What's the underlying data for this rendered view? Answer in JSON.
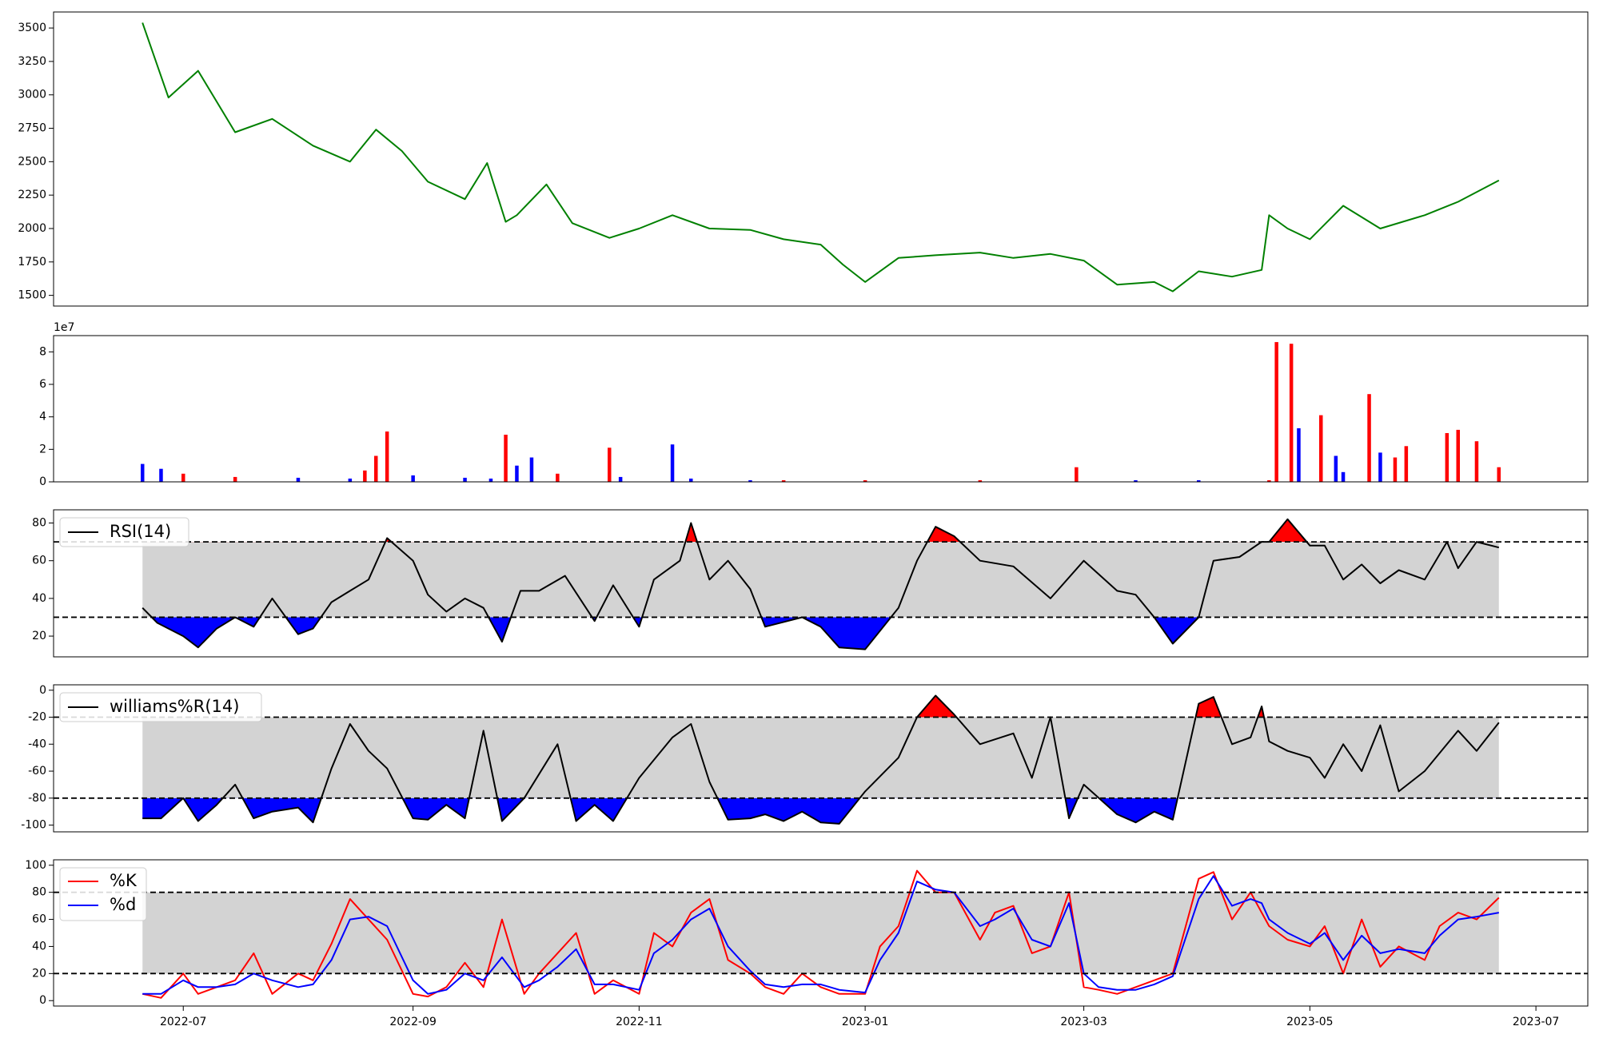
{
  "chart_data": [
    {
      "id": "price",
      "type": "line",
      "color": "#008000",
      "ylim": [
        1420,
        3620
      ],
      "yticks": [
        1500,
        1750,
        2000,
        2250,
        2500,
        2750,
        3000,
        3250,
        3500
      ],
      "x": [
        "2022-06-20",
        "2022-06-27",
        "2022-07-05",
        "2022-07-15",
        "2022-07-25",
        "2022-08-05",
        "2022-08-15",
        "2022-08-22",
        "2022-08-29",
        "2022-09-05",
        "2022-09-15",
        "2022-09-21",
        "2022-09-26",
        "2022-09-29",
        "2022-10-07",
        "2022-10-14",
        "2022-10-24",
        "2022-11-01",
        "2022-11-10",
        "2022-11-20",
        "2022-12-01",
        "2022-12-10",
        "2022-12-20",
        "2022-12-26",
        "2023-01-01",
        "2023-01-10",
        "2023-01-20",
        "2023-02-01",
        "2023-02-10",
        "2023-02-20",
        "2023-03-01",
        "2023-03-10",
        "2023-03-20",
        "2023-03-25",
        "2023-04-01",
        "2023-04-10",
        "2023-04-18",
        "2023-04-20",
        "2023-04-25",
        "2023-05-01",
        "2023-05-10",
        "2023-05-20",
        "2023-06-01",
        "2023-06-10",
        "2023-06-21"
      ],
      "values": [
        3540,
        2980,
        3180,
        2720,
        2820,
        2620,
        2500,
        2740,
        2580,
        2350,
        2220,
        2490,
        2050,
        2100,
        2330,
        2040,
        1930,
        2000,
        2100,
        2000,
        1990,
        1920,
        1880,
        1730,
        1600,
        1780,
        1800,
        1820,
        1780,
        1810,
        1760,
        1580,
        1600,
        1530,
        1680,
        1640,
        1690,
        2100,
        2000,
        1920,
        2170,
        2000,
        2100,
        2200,
        2360
      ]
    },
    {
      "id": "volume",
      "type": "bar",
      "exponent_label": "1e7",
      "ylim": [
        0,
        90000000
      ],
      "yticks": [
        0,
        20000000,
        40000000,
        60000000,
        80000000
      ],
      "ytick_labels": [
        "0",
        "2",
        "4",
        "6",
        "8"
      ],
      "colors": {
        "up": "#ff0000",
        "down": "#0000ff"
      },
      "x": [
        "2022-06-20",
        "2022-06-25",
        "2022-07-01",
        "2022-07-15",
        "2022-08-01",
        "2022-08-15",
        "2022-08-19",
        "2022-08-22",
        "2022-08-25",
        "2022-09-01",
        "2022-09-15",
        "2022-09-22",
        "2022-09-26",
        "2022-09-29",
        "2022-10-03",
        "2022-10-10",
        "2022-10-24",
        "2022-10-27",
        "2022-11-10",
        "2022-11-15",
        "2022-12-01",
        "2022-12-10",
        "2023-01-01",
        "2023-02-01",
        "2023-02-27",
        "2023-03-15",
        "2023-04-01",
        "2023-04-20",
        "2023-04-22",
        "2023-04-26",
        "2023-04-28",
        "2023-05-04",
        "2023-05-08",
        "2023-05-10",
        "2023-05-17",
        "2023-05-20",
        "2023-05-24",
        "2023-05-27",
        "2023-06-07",
        "2023-06-10",
        "2023-06-15",
        "2023-06-21"
      ],
      "values": [
        11000000,
        8000000,
        5000000,
        3000000,
        2500000,
        2000000,
        7000000,
        16000000,
        31000000,
        4000000,
        2500000,
        2000000,
        29000000,
        10000000,
        15000000,
        5000000,
        21000000,
        3000000,
        23000000,
        2000000,
        1000000,
        1000000,
        1000000,
        1000000,
        9000000,
        1000000,
        1000000,
        1000000,
        86000000,
        85000000,
        33000000,
        41000000,
        16000000,
        6000000,
        54000000,
        18000000,
        15000000,
        22000000,
        30000000,
        32000000,
        25000000,
        9000000
      ],
      "directions": [
        "down",
        "down",
        "up",
        "up",
        "down",
        "down",
        "up",
        "up",
        "up",
        "down",
        "down",
        "down",
        "up",
        "down",
        "down",
        "up",
        "up",
        "down",
        "down",
        "down",
        "down",
        "up",
        "up",
        "up",
        "up",
        "down",
        "down",
        "up",
        "up",
        "up",
        "down",
        "up",
        "down",
        "down",
        "up",
        "down",
        "up",
        "up",
        "up",
        "up",
        "up",
        "up"
      ]
    },
    {
      "id": "rsi",
      "type": "line",
      "legend": "RSI(14)",
      "color": "#000000",
      "ylim": [
        9,
        87
      ],
      "yticks": [
        20,
        40,
        60,
        80
      ],
      "thresholds": {
        "upper": 70,
        "lower": 30
      },
      "band_color": "#d3d3d3",
      "fill_above": "#ff0000",
      "fill_below": "#0000ff",
      "x": [
        "2022-06-20",
        "2022-06-24",
        "2022-07-01",
        "2022-07-05",
        "2022-07-10",
        "2022-07-15",
        "2022-07-20",
        "2022-07-25",
        "2022-08-01",
        "2022-08-05",
        "2022-08-10",
        "2022-08-15",
        "2022-08-20",
        "2022-08-25",
        "2022-09-01",
        "2022-09-05",
        "2022-09-10",
        "2022-09-15",
        "2022-09-20",
        "2022-09-25",
        "2022-09-30",
        "2022-10-05",
        "2022-10-12",
        "2022-10-20",
        "2022-10-25",
        "2022-11-01",
        "2022-11-05",
        "2022-11-12",
        "2022-11-15",
        "2022-11-20",
        "2022-11-25",
        "2022-12-01",
        "2022-12-05",
        "2022-12-15",
        "2022-12-20",
        "2022-12-25",
        "2023-01-01",
        "2023-01-10",
        "2023-01-15",
        "2023-01-20",
        "2023-01-25",
        "2023-02-01",
        "2023-02-10",
        "2023-02-20",
        "2023-03-01",
        "2023-03-10",
        "2023-03-15",
        "2023-03-20",
        "2023-03-25",
        "2023-04-01",
        "2023-04-05",
        "2023-04-12",
        "2023-04-18",
        "2023-04-20",
        "2023-04-25",
        "2023-05-01",
        "2023-05-05",
        "2023-05-10",
        "2023-05-15",
        "2023-05-20",
        "2023-05-25",
        "2023-06-01",
        "2023-06-07",
        "2023-06-10",
        "2023-06-15",
        "2023-06-21"
      ],
      "values": [
        35,
        27,
        20,
        14,
        24,
        30,
        25,
        40,
        21,
        24,
        38,
        44,
        50,
        72,
        60,
        42,
        33,
        40,
        35,
        17,
        44,
        44,
        52,
        28,
        47,
        25,
        50,
        60,
        80,
        50,
        60,
        45,
        25,
        30,
        25,
        14,
        13,
        35,
        60,
        78,
        73,
        60,
        57,
        40,
        60,
        44,
        42,
        30,
        16,
        30,
        60,
        62,
        70,
        70,
        82,
        68,
        68,
        50,
        58,
        48,
        55,
        50,
        70,
        56,
        70,
        67
      ]
    },
    {
      "id": "williams",
      "type": "line",
      "legend": "williams%R(14)",
      "color": "#000000",
      "ylim": [
        -105,
        4
      ],
      "yticks": [
        -100,
        -80,
        -60,
        -40,
        -20,
        0
      ],
      "thresholds": {
        "upper": -20,
        "lower": -80
      },
      "band_color": "#d3d3d3",
      "fill_above": "#ff0000",
      "fill_below": "#0000ff",
      "x": [
        "2022-06-20",
        "2022-06-25",
        "2022-07-01",
        "2022-07-05",
        "2022-07-10",
        "2022-07-15",
        "2022-07-20",
        "2022-07-25",
        "2022-08-01",
        "2022-08-05",
        "2022-08-10",
        "2022-08-15",
        "2022-08-20",
        "2022-08-25",
        "2022-09-01",
        "2022-09-05",
        "2022-09-10",
        "2022-09-15",
        "2022-09-20",
        "2022-09-25",
        "2022-10-01",
        "2022-10-10",
        "2022-10-15",
        "2022-10-20",
        "2022-10-25",
        "2022-11-01",
        "2022-11-10",
        "2022-11-15",
        "2022-11-20",
        "2022-11-25",
        "2022-12-01",
        "2022-12-05",
        "2022-12-10",
        "2022-12-15",
        "2022-12-20",
        "2022-12-25",
        "2023-01-01",
        "2023-01-10",
        "2023-01-15",
        "2023-01-20",
        "2023-01-25",
        "2023-02-01",
        "2023-02-10",
        "2023-02-15",
        "2023-02-20",
        "2023-02-25",
        "2023-03-01",
        "2023-03-10",
        "2023-03-15",
        "2023-03-20",
        "2023-03-25",
        "2023-04-01",
        "2023-04-05",
        "2023-04-10",
        "2023-04-15",
        "2023-04-18",
        "2023-04-20",
        "2023-04-25",
        "2023-05-01",
        "2023-05-05",
        "2023-05-10",
        "2023-05-15",
        "2023-05-20",
        "2023-05-25",
        "2023-06-01",
        "2023-06-10",
        "2023-06-15",
        "2023-06-21"
      ],
      "values": [
        -95,
        -95,
        -80,
        -97,
        -85,
        -70,
        -95,
        -90,
        -87,
        -98,
        -58,
        -25,
        -45,
        -58,
        -95,
        -96,
        -85,
        -95,
        -30,
        -97,
        -80,
        -40,
        -97,
        -85,
        -97,
        -65,
        -35,
        -25,
        -68,
        -96,
        -95,
        -92,
        -97,
        -90,
        -98,
        -99,
        -75,
        -50,
        -20,
        -4,
        -18,
        -40,
        -32,
        -65,
        -20,
        -95,
        -70,
        -92,
        -98,
        -90,
        -96,
        -10,
        -5,
        -40,
        -35,
        -12,
        -38,
        -45,
        -50,
        -65,
        -40,
        -60,
        -26,
        -75,
        -60,
        -30,
        -45,
        -24
      ]
    },
    {
      "id": "stochastic",
      "type": "line",
      "ylim": [
        -4,
        104
      ],
      "yticks": [
        0,
        20,
        40,
        60,
        80,
        100
      ],
      "thresholds": {
        "upper": 80,
        "lower": 20
      },
      "band_color": "#d3d3d3",
      "series": [
        {
          "name": "%K",
          "color": "#ff0000",
          "x": [
            "2022-06-20",
            "2022-06-25",
            "2022-07-01",
            "2022-07-05",
            "2022-07-10",
            "2022-07-15",
            "2022-07-20",
            "2022-07-25",
            "2022-08-01",
            "2022-08-05",
            "2022-08-10",
            "2022-08-15",
            "2022-08-20",
            "2022-08-25",
            "2022-09-01",
            "2022-09-05",
            "2022-09-10",
            "2022-09-15",
            "2022-09-20",
            "2022-09-25",
            "2022-10-01",
            "2022-10-05",
            "2022-10-10",
            "2022-10-15",
            "2022-10-20",
            "2022-10-25",
            "2022-11-01",
            "2022-11-05",
            "2022-11-10",
            "2022-11-15",
            "2022-11-20",
            "2022-11-25",
            "2022-12-01",
            "2022-12-05",
            "2022-12-10",
            "2022-12-15",
            "2022-12-20",
            "2022-12-25",
            "2023-01-01",
            "2023-01-05",
            "2023-01-10",
            "2023-01-15",
            "2023-01-20",
            "2023-01-25",
            "2023-02-01",
            "2023-02-05",
            "2023-02-10",
            "2023-02-15",
            "2023-02-20",
            "2023-02-25",
            "2023-03-01",
            "2023-03-05",
            "2023-03-10",
            "2023-03-15",
            "2023-03-20",
            "2023-03-25",
            "2023-04-01",
            "2023-04-05",
            "2023-04-10",
            "2023-04-15",
            "2023-04-18",
            "2023-04-20",
            "2023-04-25",
            "2023-05-01",
            "2023-05-05",
            "2023-05-10",
            "2023-05-15",
            "2023-05-20",
            "2023-05-25",
            "2023-06-01",
            "2023-06-05",
            "2023-06-10",
            "2023-06-15",
            "2023-06-21"
          ],
          "values": [
            5,
            2,
            20,
            5,
            10,
            15,
            35,
            5,
            20,
            15,
            42,
            75,
            60,
            45,
            5,
            3,
            10,
            28,
            10,
            60,
            5,
            20,
            35,
            50,
            5,
            15,
            5,
            50,
            40,
            65,
            75,
            30,
            20,
            10,
            5,
            20,
            10,
            5,
            5,
            40,
            55,
            96,
            80,
            80,
            45,
            65,
            70,
            35,
            40,
            80,
            10,
            8,
            5,
            10,
            15,
            20,
            90,
            95,
            60,
            80,
            65,
            55,
            45,
            40,
            55,
            20,
            60,
            25,
            40,
            30,
            55,
            65,
            60,
            76
          ]
        },
        {
          "name": "%d",
          "color": "#0000ff",
          "x": [
            "2022-06-20",
            "2022-06-25",
            "2022-07-01",
            "2022-07-05",
            "2022-07-10",
            "2022-07-15",
            "2022-07-20",
            "2022-07-25",
            "2022-08-01",
            "2022-08-05",
            "2022-08-10",
            "2022-08-15",
            "2022-08-20",
            "2022-08-25",
            "2022-09-01",
            "2022-09-05",
            "2022-09-10",
            "2022-09-15",
            "2022-09-20",
            "2022-09-25",
            "2022-10-01",
            "2022-10-05",
            "2022-10-10",
            "2022-10-15",
            "2022-10-20",
            "2022-10-25",
            "2022-11-01",
            "2022-11-05",
            "2022-11-10",
            "2022-11-15",
            "2022-11-20",
            "2022-11-25",
            "2022-12-01",
            "2022-12-05",
            "2022-12-10",
            "2022-12-15",
            "2022-12-20",
            "2022-12-25",
            "2023-01-01",
            "2023-01-05",
            "2023-01-10",
            "2023-01-15",
            "2023-01-20",
            "2023-01-25",
            "2023-02-01",
            "2023-02-05",
            "2023-02-10",
            "2023-02-15",
            "2023-02-20",
            "2023-02-25",
            "2023-03-01",
            "2023-03-05",
            "2023-03-10",
            "2023-03-15",
            "2023-03-20",
            "2023-03-25",
            "2023-04-01",
            "2023-04-05",
            "2023-04-10",
            "2023-04-15",
            "2023-04-18",
            "2023-04-20",
            "2023-04-25",
            "2023-05-01",
            "2023-05-05",
            "2023-05-10",
            "2023-05-15",
            "2023-05-20",
            "2023-05-25",
            "2023-06-01",
            "2023-06-05",
            "2023-06-10",
            "2023-06-15",
            "2023-06-21"
          ],
          "values": [
            5,
            5,
            15,
            10,
            10,
            12,
            20,
            15,
            10,
            12,
            30,
            60,
            62,
            55,
            15,
            5,
            8,
            20,
            15,
            32,
            10,
            15,
            25,
            38,
            12,
            12,
            8,
            35,
            45,
            60,
            68,
            40,
            22,
            12,
            10,
            12,
            12,
            8,
            6,
            30,
            50,
            88,
            82,
            80,
            55,
            60,
            68,
            45,
            40,
            72,
            20,
            10,
            8,
            8,
            12,
            18,
            75,
            92,
            70,
            75,
            72,
            60,
            50,
            42,
            50,
            30,
            48,
            35,
            38,
            35,
            48,
            60,
            62,
            65
          ]
        }
      ]
    }
  ],
  "x_axis": {
    "ticks": [
      "2022-07-01",
      "2022-09-01",
      "2022-11-01",
      "2023-01-01",
      "2023-03-01",
      "2023-05-01",
      "2023-07-01"
    ],
    "tick_labels": [
      "2022-07",
      "2022-09",
      "2022-11",
      "2023-01",
      "2023-03",
      "2023-05",
      "2023-07"
    ],
    "range": [
      "2022-05-27",
      "2023-07-15"
    ]
  }
}
